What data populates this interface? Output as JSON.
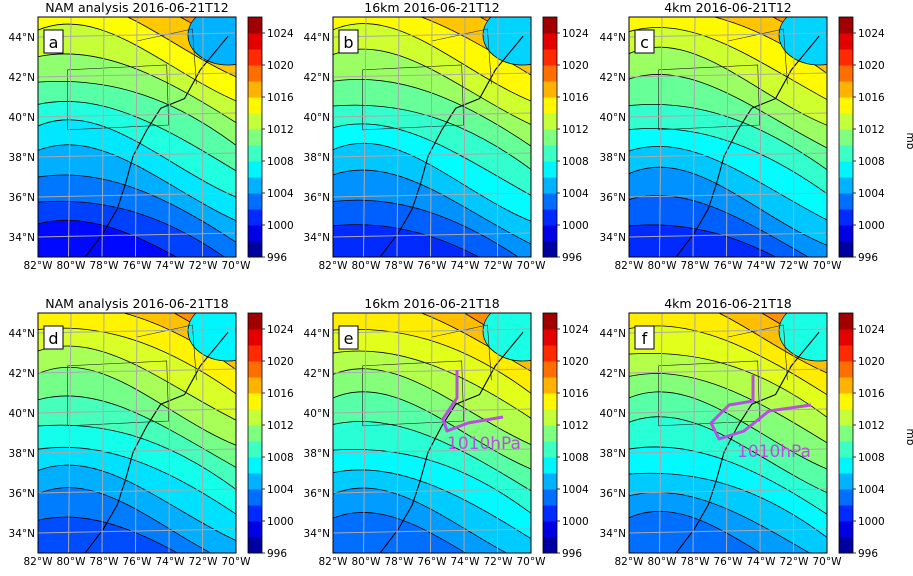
{
  "figure": {
    "unit_label": "mb",
    "colormap_stops": [
      "#00007f",
      "#0000ff",
      "#007fff",
      "#00ffff",
      "#7fff7f",
      "#ffff00",
      "#ff7f00",
      "#ff0000",
      "#7f0000"
    ],
    "panel_outline_color": "#000000",
    "gridline_color": "#a9a9a9",
    "annotation_color": "#b84fe0"
  },
  "chart_data": [
    {
      "type": "heatmap",
      "panel_letter": "a",
      "title": "NAM analysis 2016-06-21T12",
      "lon_ticks": [
        "82°W",
        "80°W",
        "78°W",
        "76°W",
        "74°W",
        "72°W",
        "70°W"
      ],
      "lat_ticks": [
        "34°N",
        "36°N",
        "38°N",
        "40°N",
        "42°N",
        "44°N"
      ],
      "lon_range": [
        -82,
        -70
      ],
      "lat_range": [
        33,
        45
      ],
      "colorbar": {
        "ticks": [
          996,
          1000,
          1004,
          1008,
          1012,
          1016,
          1020,
          1024
        ],
        "range": [
          996,
          1026
        ],
        "label": ""
      },
      "field_min_mb": 1000,
      "field_max_mb": 1018,
      "annotation": null
    },
    {
      "type": "heatmap",
      "panel_letter": "b",
      "title": "16km 2016-06-21T12",
      "lon_ticks": [
        "82°W",
        "80°W",
        "78°W",
        "76°W",
        "74°W",
        "72°W",
        "70°W"
      ],
      "lat_ticks": [
        "34°N",
        "36°N",
        "38°N",
        "40°N",
        "42°N",
        "44°N"
      ],
      "lon_range": [
        -82,
        -70
      ],
      "lat_range": [
        33,
        45
      ],
      "colorbar": {
        "ticks": [
          996,
          1000,
          1004,
          1008,
          1012,
          1016,
          1020,
          1024
        ],
        "range": [
          996,
          1026
        ],
        "label": ""
      },
      "field_min_mb": 1001,
      "field_max_mb": 1018,
      "annotation": null
    },
    {
      "type": "heatmap",
      "panel_letter": "c",
      "title": "4km 2016-06-21T12",
      "lon_ticks": [
        "82°W",
        "80°W",
        "78°W",
        "76°W",
        "74°W",
        "72°W",
        "70°W"
      ],
      "lat_ticks": [
        "34°N",
        "36°N",
        "38°N",
        "40°N",
        "42°N",
        "44°N"
      ],
      "lon_range": [
        -82,
        -70
      ],
      "lat_range": [
        33,
        45
      ],
      "colorbar": {
        "ticks": [
          996,
          1000,
          1004,
          1008,
          1012,
          1016,
          1020,
          1024
        ],
        "range": [
          996,
          1026
        ],
        "label": "mb"
      },
      "field_min_mb": 1001,
      "field_max_mb": 1018,
      "annotation": null
    },
    {
      "type": "heatmap",
      "panel_letter": "d",
      "title": "NAM analysis 2016-06-21T18",
      "lon_ticks": [
        "82°W",
        "80°W",
        "78°W",
        "76°W",
        "74°W",
        "72°W",
        "70°W"
      ],
      "lat_ticks": [
        "34°N",
        "36°N",
        "38°N",
        "40°N",
        "42°N",
        "44°N"
      ],
      "lon_range": [
        -82,
        -70
      ],
      "lat_range": [
        33,
        45
      ],
      "colorbar": {
        "ticks": [
          996,
          1000,
          1004,
          1008,
          1012,
          1016,
          1020,
          1024
        ],
        "range": [
          996,
          1026
        ],
        "label": ""
      },
      "field_min_mb": 1002,
      "field_max_mb": 1018,
      "annotation": null
    },
    {
      "type": "heatmap",
      "panel_letter": "e",
      "title": "16km 2016-06-21T18",
      "lon_ticks": [
        "82°W",
        "80°W",
        "78°W",
        "76°W",
        "74°W",
        "72°W",
        "70°W"
      ],
      "lat_ticks": [
        "34°N",
        "36°N",
        "38°N",
        "40°N",
        "42°N",
        "44°N"
      ],
      "lon_range": [
        -82,
        -70
      ],
      "lat_range": [
        33,
        45
      ],
      "colorbar": {
        "ticks": [
          996,
          1000,
          1004,
          1008,
          1012,
          1016,
          1020,
          1024
        ],
        "range": [
          996,
          1026
        ],
        "label": ""
      },
      "field_min_mb": 1003,
      "field_max_mb": 1018,
      "annotation": {
        "text": "1010hPa",
        "contour_mb": 1010
      }
    },
    {
      "type": "heatmap",
      "panel_letter": "f",
      "title": "4km 2016-06-21T18",
      "lon_ticks": [
        "82°W",
        "80°W",
        "78°W",
        "76°W",
        "74°W",
        "72°W",
        "70°W"
      ],
      "lat_ticks": [
        "34°N",
        "36°N",
        "38°N",
        "40°N",
        "42°N",
        "44°N"
      ],
      "lon_range": [
        -82,
        -70
      ],
      "lat_range": [
        33,
        45
      ],
      "colorbar": {
        "ticks": [
          996,
          1000,
          1004,
          1008,
          1012,
          1016,
          1020,
          1024
        ],
        "range": [
          996,
          1026
        ],
        "label": "mb"
      },
      "field_min_mb": 1003,
      "field_max_mb": 1018,
      "annotation": {
        "text": "1010hPa",
        "contour_mb": 1010
      }
    }
  ]
}
